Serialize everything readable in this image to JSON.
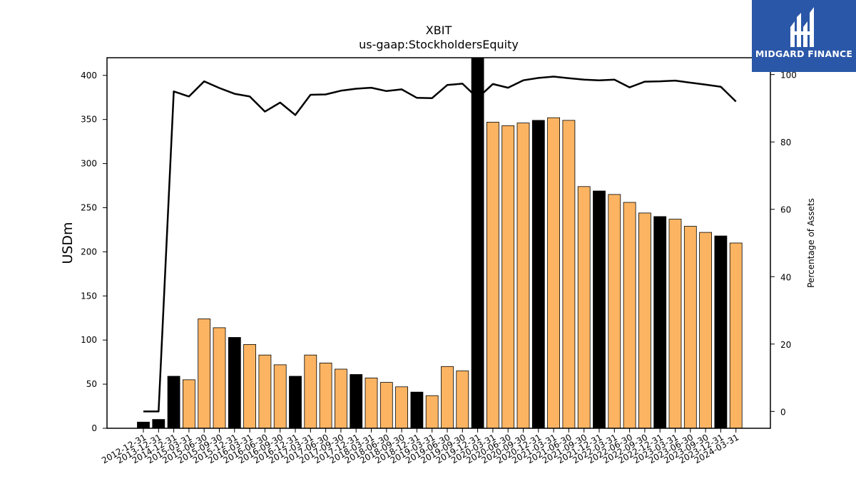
{
  "brand": {
    "name": "MIDGARD FINANCE",
    "logo_icon": "midgard-mh-monogram-icon",
    "color": "#2a57a8"
  },
  "chart_data": {
    "type": "bar",
    "title": "XBIT",
    "subtitle": "us-gaap:StockholdersEquity",
    "ylabel": "USDm",
    "y2label": "Percentage of Assets",
    "ylim": [
      0,
      420
    ],
    "y2lim": [
      -5,
      105
    ],
    "yticks": [
      0,
      50,
      100,
      150,
      200,
      250,
      300,
      350,
      400
    ],
    "y2ticks": [
      0,
      20,
      40,
      60,
      80,
      100
    ],
    "colors": {
      "annual": "#000000",
      "quarterly": "#fdb462",
      "line": "#000000"
    },
    "categories": [
      "2012-12-31",
      "2013-12-31",
      "2014-12-31",
      "2015-03-31",
      "2015-06-30",
      "2015-09-30",
      "2015-12-31",
      "2016-03-31",
      "2016-06-30",
      "2016-09-30",
      "2016-12-31",
      "2017-03-31",
      "2017-06-30",
      "2017-09-30",
      "2017-12-31",
      "2018-03-31",
      "2018-06-30",
      "2018-09-30",
      "2018-12-31",
      "2019-03-31",
      "2019-06-30",
      "2019-09-30",
      "2019-12-31",
      "2020-03-31",
      "2020-06-30",
      "2020-09-30",
      "2020-12-31",
      "2021-03-31",
      "2021-06-30",
      "2021-09-30",
      "2021-12-31",
      "2022-03-31",
      "2022-06-30",
      "2022-09-30",
      "2022-12-31",
      "2023-03-31",
      "2023-06-30",
      "2023-09-30",
      "2023-12-31",
      "2024-03-31"
    ],
    "series": [
      {
        "role": "bars",
        "values": [
          7,
          10,
          59,
          55,
          124,
          114,
          103,
          95,
          83,
          72,
          59,
          83,
          74,
          67,
          61,
          57,
          52,
          47,
          41,
          37,
          70,
          65,
          420,
          347,
          343,
          346,
          349,
          352,
          349,
          274,
          269,
          265,
          256,
          244,
          240,
          237,
          229,
          222,
          218,
          210
        ],
        "annual": [
          true,
          true,
          true,
          false,
          false,
          false,
          true,
          false,
          false,
          false,
          true,
          false,
          false,
          false,
          true,
          false,
          false,
          false,
          true,
          false,
          false,
          false,
          true,
          false,
          false,
          false,
          true,
          false,
          false,
          false,
          true,
          false,
          false,
          false,
          true,
          false,
          false,
          false,
          true,
          false
        ]
      },
      {
        "role": "line-right-axis",
        "values": [
          0,
          0,
          95,
          93.5,
          98,
          96,
          94.3,
          93.5,
          89,
          91.7,
          88,
          94,
          94.1,
          95.2,
          95.8,
          96.1,
          95.1,
          95.6,
          93.1,
          93,
          96.9,
          97.3,
          93,
          97.2,
          96.1,
          98.3,
          99,
          99.4,
          98.9,
          98.5,
          98.3,
          98.5,
          96.2,
          97.9,
          98,
          98.2,
          97.6,
          97,
          96.4,
          92
        ]
      }
    ]
  }
}
